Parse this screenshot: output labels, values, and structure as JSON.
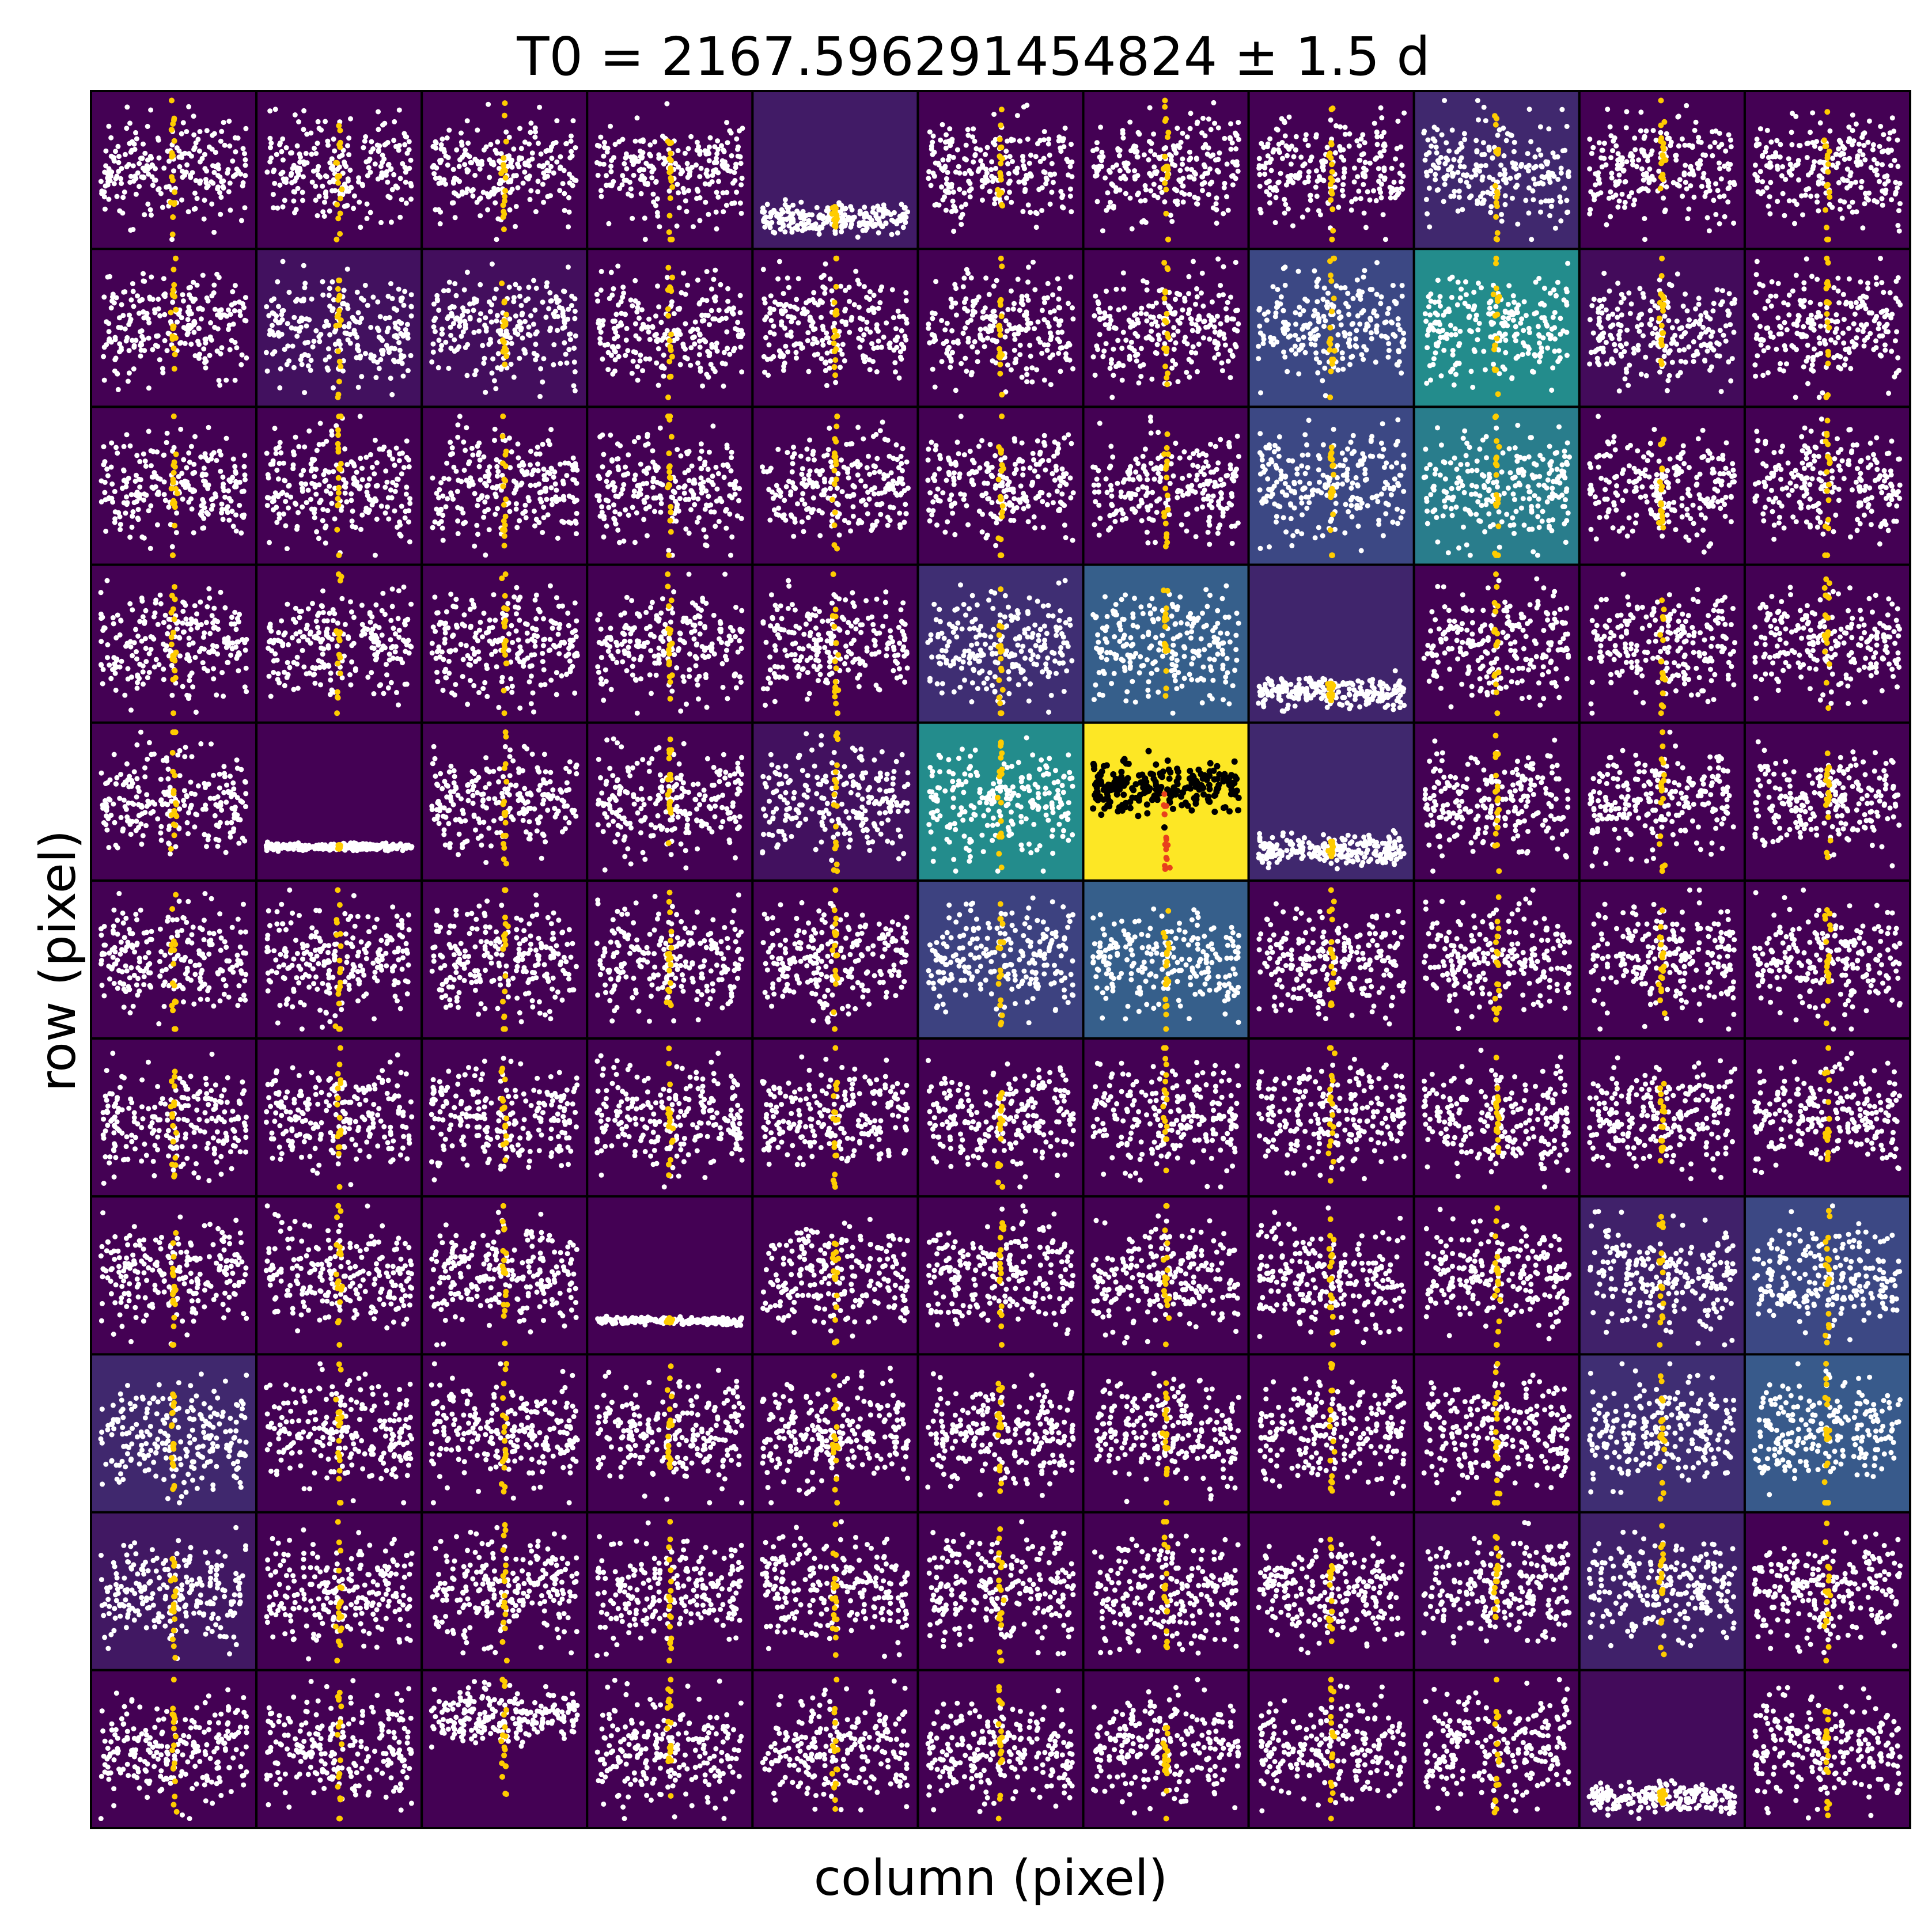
{
  "chart_data": {
    "type": "pixel-lightcurve-grid",
    "title": "T0 = 2167.596291454824 ± 1.5 d",
    "xlabel": "column (pixel)",
    "ylabel": "row (pixel)",
    "grid": {
      "rows": 11,
      "cols": 11
    },
    "colormap": "viridis",
    "background_level": [
      [
        0.0,
        0.0,
        0.0,
        0.0,
        0.08,
        0.0,
        0.0,
        0.0,
        0.12,
        0.0,
        0.0
      ],
      [
        0.0,
        0.05,
        0.04,
        0.0,
        0.0,
        0.0,
        0.0,
        0.22,
        0.48,
        0.03,
        0.0
      ],
      [
        0.0,
        0.0,
        0.0,
        0.0,
        0.0,
        0.0,
        0.0,
        0.22,
        0.42,
        0.0,
        0.0
      ],
      [
        0.0,
        0.0,
        0.0,
        0.0,
        0.0,
        0.14,
        0.3,
        0.11,
        0.0,
        0.0,
        0.0
      ],
      [
        0.0,
        0.0,
        0.0,
        0.0,
        0.05,
        0.48,
        1.0,
        0.12,
        0.0,
        0.0,
        0.0
      ],
      [
        0.0,
        0.0,
        0.0,
        0.0,
        0.0,
        0.2,
        0.3,
        0.0,
        0.0,
        0.0,
        0.0
      ],
      [
        0.0,
        0.0,
        0.0,
        0.0,
        0.0,
        0.0,
        0.0,
        0.0,
        0.0,
        0.0,
        0.0
      ],
      [
        0.0,
        0.0,
        0.0,
        0.0,
        0.0,
        0.0,
        0.0,
        0.0,
        0.0,
        0.1,
        0.22
      ],
      [
        0.12,
        0.0,
        0.0,
        0.0,
        0.0,
        0.0,
        0.0,
        0.0,
        0.0,
        0.14,
        0.28
      ],
      [
        0.07,
        0.0,
        0.0,
        0.0,
        0.0,
        0.0,
        0.0,
        0.0,
        0.02,
        0.1,
        0.0
      ],
      [
        0.0,
        0.0,
        0.0,
        0.0,
        0.0,
        0.0,
        0.0,
        0.0,
        0.0,
        0.03,
        0.0
      ]
    ],
    "series": [
      {
        "color": "#ffffff"
      },
      {
        "color": "#ffcc00"
      },
      {
        "color": "#000000"
      },
      {
        "color": "#e8401c"
      }
    ],
    "target_pixel": {
      "row": 4,
      "col": 6
    },
    "flat_pixels": [
      {
        "row": 4,
        "col": 1
      },
      {
        "row": 7,
        "col": 3
      }
    ],
    "low_band_pixels": [
      {
        "row": 0,
        "col": 4
      },
      {
        "row": 3,
        "col": 7
      },
      {
        "row": 4,
        "col": 7
      },
      {
        "row": 10,
        "col": 9
      }
    ],
    "shifted_up_pixels": [
      {
        "row": 10,
        "col": 2
      }
    ]
  }
}
